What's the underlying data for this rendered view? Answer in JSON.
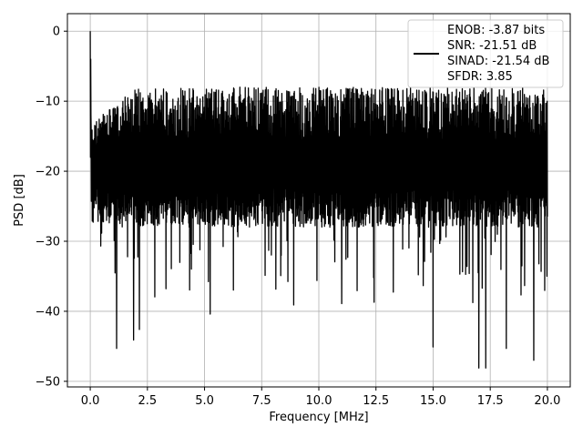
{
  "chart_data": {
    "type": "line",
    "xlabel": "Frequency [MHz]",
    "ylabel": "PSD [dB]",
    "xlim": [
      -1.0,
      21.0
    ],
    "ylim": [
      -50.8,
      2.5
    ],
    "xticks": [
      0.0,
      2.5,
      5.0,
      7.5,
      10.0,
      12.5,
      15.0,
      17.5,
      20.0
    ],
    "xtick_labels": [
      "0.0",
      "2.5",
      "5.0",
      "7.5",
      "10.0",
      "12.5",
      "15.0",
      "17.5",
      "20.0"
    ],
    "yticks": [
      0,
      -10,
      -20,
      -30,
      -40,
      -50
    ],
    "ytick_labels": [
      "0",
      "−10",
      "−20",
      "−30",
      "−40",
      "−50"
    ],
    "grid": true,
    "legend": {
      "position": "top-right",
      "lines": [
        "ENOB: -3.87 bits",
        "SNR: -21.51 dB",
        "SINAD: -21.54 dB",
        "SFDR: 3.85"
      ]
    },
    "series": [
      {
        "color": "#000000",
        "x_start": 0.0,
        "x_end": 20.0,
        "points": 2048,
        "noise_floor_band_db": [
          -28,
          -8
        ],
        "peak": {
          "x": 0.0,
          "y": 0.0
        },
        "dips": [
          {
            "x": 1.15,
            "y": -45.3
          },
          {
            "x": 1.9,
            "y": -44.1
          },
          {
            "x": 2.15,
            "y": -42.6
          },
          {
            "x": 5.25,
            "y": -40.4
          },
          {
            "x": 8.9,
            "y": -39.1
          },
          {
            "x": 11.0,
            "y": -38.9
          },
          {
            "x": 15.0,
            "y": -45.1
          },
          {
            "x": 17.0,
            "y": -48.1
          },
          {
            "x": 17.3,
            "y": -48.1
          },
          {
            "x": 18.2,
            "y": -45.3
          },
          {
            "x": 19.4,
            "y": -47.0
          }
        ]
      }
    ]
  }
}
